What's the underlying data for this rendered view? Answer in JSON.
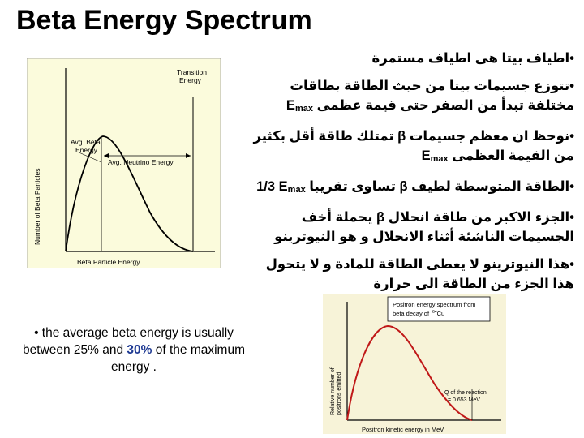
{
  "title": "Beta Energy Spectrum",
  "bullets": [
    "•اطياف بيتا هى اطياف مستمرة",
    "•تتوزع جسيمات بيتا من حيث الطاقة بطاقات مختلفة تبدأ من الصفر حتى قيمة عظمى",
    "•نوحظ ان  معظم جسيمات β تمتلك طاقة أقل بكثير من القيمة العظمى",
    "•الطاقة المتوسطة لطيف β تساوى تقريبا",
    "•الجزء الاكبر من طاقة انحلال β يحملة أخف الجسيمات الناشئة أثناء الانحلال و هو النيوترينو",
    "•هذا النيوترينو لا يعطى الطاقة للمادة و لا يتحول هذا الجزء من الطاقة الى حرارة"
  ],
  "emax": {
    "main": "E",
    "sub": "max"
  },
  "fraction": "1/3",
  "figure1": {
    "ylabel": "Number of Beta Particles",
    "xlabel": "Beta Particle Energy",
    "label_transition": [
      "Transition",
      "Energy"
    ],
    "label_avg_beta": [
      "Avg. Beta",
      "Energy"
    ],
    "label_avg_neutrino": "Avg. Neutrino Energy"
  },
  "figure2": {
    "title": [
      "Positron energy spectrum from",
      "beta decay of"
    ],
    "isotope_mass": "64",
    "isotope": "Cu",
    "ylabel": [
      "Relative number of",
      "positrons emitted"
    ],
    "xlabel": "Positron kinetic energy in MeV",
    "q_label": [
      "Q of the reaction",
      "= 0.653 MeV"
    ]
  },
  "note": {
    "pre": "• the average beta energy is usually between 25% and ",
    "highlight": "30%",
    "post": " of the maximum energy ."
  },
  "colors": {
    "fig1_bg": "#fbfbdc",
    "fig2_bg": "#f7f3d8",
    "curve": "#c01818",
    "highlight": "#1f3a93"
  }
}
